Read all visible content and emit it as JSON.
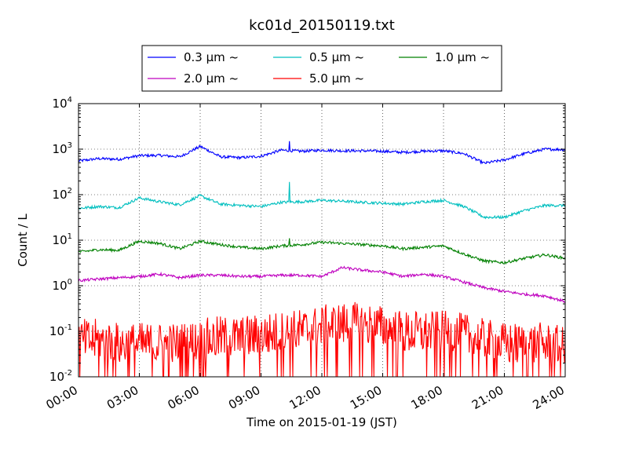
{
  "chart_data": {
    "type": "line",
    "title": "kc01d_20150119.txt",
    "xlabel": "Time on 2015-01-19 (JST)",
    "ylabel": "Count / L",
    "y_scale": "log",
    "ylim": [
      0.01,
      10000
    ],
    "xlim": [
      "00:00",
      "24:00"
    ],
    "grid": true,
    "legend_position": "top",
    "x_ticks": [
      "00:00",
      "03:00",
      "06:00",
      "09:00",
      "12:00",
      "15:00",
      "18:00",
      "21:00",
      "24:00"
    ],
    "y_ticks": [
      {
        "base": "10",
        "exp": "-2"
      },
      {
        "base": "10",
        "exp": "-1"
      },
      {
        "base": "10",
        "exp": "0"
      },
      {
        "base": "10",
        "exp": "1"
      },
      {
        "base": "10",
        "exp": "2"
      },
      {
        "base": "10",
        "exp": "3"
      },
      {
        "base": "10",
        "exp": "4"
      }
    ],
    "x": [
      "00:00",
      "01:00",
      "02:00",
      "03:00",
      "04:00",
      "05:00",
      "06:00",
      "07:00",
      "08:00",
      "09:00",
      "10:00",
      "11:00",
      "12:00",
      "13:00",
      "14:00",
      "15:00",
      "16:00",
      "17:00",
      "18:00",
      "19:00",
      "20:00",
      "21:00",
      "22:00",
      "23:00",
      "24:00"
    ],
    "series": [
      {
        "name": "0.3 μm ~",
        "color": "#0000ff",
        "values": [
          550,
          620,
          600,
          720,
          730,
          680,
          1150,
          680,
          650,
          700,
          950,
          900,
          950,
          920,
          920,
          900,
          850,
          900,
          920,
          800,
          490,
          580,
          800,
          1000,
          980
        ],
        "spikes": [
          {
            "x": "10:24",
            "y": 1500
          }
        ]
      },
      {
        "name": "0.5 μm ~",
        "color": "#00bfbf",
        "values": [
          50,
          55,
          52,
          85,
          70,
          60,
          95,
          62,
          58,
          55,
          68,
          70,
          75,
          72,
          68,
          65,
          62,
          70,
          75,
          55,
          32,
          32,
          45,
          58,
          58
        ],
        "spikes": [
          {
            "x": "10:24",
            "y": 190
          }
        ]
      },
      {
        "name": "1.0 μm ~",
        "color": "#008000",
        "values": [
          5.5,
          6.2,
          6.0,
          9.5,
          8.5,
          6.5,
          9.5,
          8.0,
          7.0,
          6.5,
          7.5,
          8.0,
          9.0,
          8.5,
          8.0,
          7.5,
          6.5,
          7.0,
          7.5,
          5.0,
          3.5,
          3.2,
          4.0,
          4.8,
          4.0
        ],
        "spikes": [
          {
            "x": "10:24",
            "y": 11
          }
        ]
      },
      {
        "name": "2.0 μm ~",
        "color": "#bf00bf",
        "values": [
          1.3,
          1.4,
          1.5,
          1.6,
          1.8,
          1.5,
          1.7,
          1.7,
          1.6,
          1.6,
          1.7,
          1.7,
          1.6,
          2.5,
          2.2,
          2.0,
          1.6,
          1.8,
          1.6,
          1.2,
          0.9,
          0.75,
          0.65,
          0.6,
          0.45
        ]
      },
      {
        "name": "5.0 μm ~",
        "color": "#ff0000",
        "values": [
          0.06,
          0.06,
          0.05,
          0.05,
          0.05,
          0.05,
          0.06,
          0.07,
          0.07,
          0.08,
          0.09,
          0.1,
          0.12,
          0.14,
          0.14,
          0.12,
          0.09,
          0.09,
          0.09,
          0.08,
          0.06,
          0.05,
          0.05,
          0.05,
          0.04
        ],
        "noisy": true
      }
    ]
  }
}
